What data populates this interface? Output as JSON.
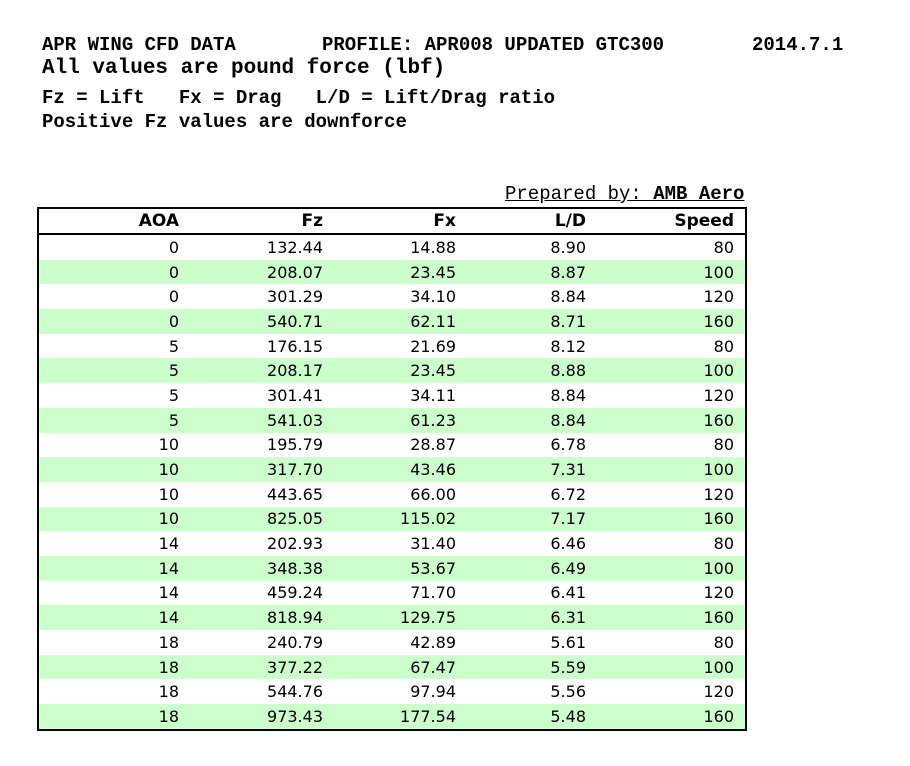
{
  "header": {
    "line1_left": "APR WING CFD DATA",
    "line1_mid": "PROFILE: APR008 UPDATED GTC300",
    "line1_right": "2014.7.1",
    "line2": "All values are pound force (lbf)",
    "line3": "Fz = Lift   Fx = Drag   L/D = Lift/Drag ratio",
    "line4": "Positive Fz values are downforce"
  },
  "prepared_by": {
    "label": "Prepared by: ",
    "value": "AMB Aero"
  },
  "table": {
    "columns": [
      "AOA",
      "Fz",
      "Fx",
      "L/D",
      "Speed"
    ],
    "rows": [
      [
        "0",
        "132.44",
        "14.88",
        "8.90",
        "80"
      ],
      [
        "0",
        "208.07",
        "23.45",
        "8.87",
        "100"
      ],
      [
        "0",
        "301.29",
        "34.10",
        "8.84",
        "120"
      ],
      [
        "0",
        "540.71",
        "62.11",
        "8.71",
        "160"
      ],
      [
        "5",
        "176.15",
        "21.69",
        "8.12",
        "80"
      ],
      [
        "5",
        "208.17",
        "23.45",
        "8.88",
        "100"
      ],
      [
        "5",
        "301.41",
        "34.11",
        "8.84",
        "120"
      ],
      [
        "5",
        "541.03",
        "61.23",
        "8.84",
        "160"
      ],
      [
        "10",
        "195.79",
        "28.87",
        "6.78",
        "80"
      ],
      [
        "10",
        "317.70",
        "43.46",
        "7.31",
        "100"
      ],
      [
        "10",
        "443.65",
        "66.00",
        "6.72",
        "120"
      ],
      [
        "10",
        "825.05",
        "115.02",
        "7.17",
        "160"
      ],
      [
        "14",
        "202.93",
        "31.40",
        "6.46",
        "80"
      ],
      [
        "14",
        "348.38",
        "53.67",
        "6.49",
        "100"
      ],
      [
        "14",
        "459.24",
        "71.70",
        "6.41",
        "120"
      ],
      [
        "14",
        "818.94",
        "129.75",
        "6.31",
        "160"
      ],
      [
        "18",
        "240.79",
        "42.89",
        "5.61",
        "80"
      ],
      [
        "18",
        "377.22",
        "67.47",
        "5.59",
        "100"
      ],
      [
        "18",
        "544.76",
        "97.94",
        "5.56",
        "120"
      ],
      [
        "18",
        "973.43",
        "177.54",
        "5.48",
        "160"
      ]
    ]
  },
  "colors": {
    "row_alt_green": "#ccffcc",
    "border": "#000000",
    "text": "#000000",
    "background": "#ffffff"
  }
}
